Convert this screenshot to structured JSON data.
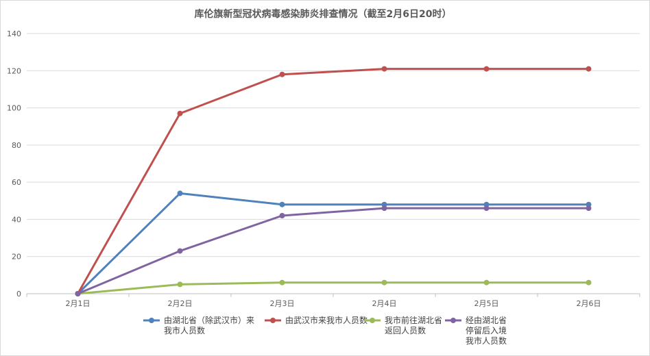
{
  "chart_data": {
    "type": "line",
    "title": "库伦旗新型冠状病毒感染肺炎排查情况（截至2月6日20时）",
    "xlabel": "",
    "ylabel": "",
    "categories": [
      "2月1日",
      "2月2日",
      "2月3日",
      "2月4日",
      "2月5日",
      "2月6日"
    ],
    "ylim": [
      0,
      140
    ],
    "yticks": [
      0,
      20,
      40,
      60,
      80,
      100,
      120,
      140
    ],
    "grid": true,
    "legend_position": "bottom",
    "series": [
      {
        "name": [
          "由湖北省（除武汉市）来",
          "我市人员数"
        ],
        "color": "#4f81bd",
        "values": [
          0,
          54,
          48,
          48,
          48,
          48
        ]
      },
      {
        "name": [
          "由武汉市来我市人员数"
        ],
        "color": "#c0504d",
        "values": [
          0,
          97,
          118,
          121,
          121,
          121
        ]
      },
      {
        "name": [
          "我市前往湖北省",
          "返回人员数"
        ],
        "color": "#9bbb59",
        "values": [
          0,
          5,
          6,
          6,
          6,
          6
        ]
      },
      {
        "name": [
          "经由湖北省",
          "停留后入境",
          "我市人员数"
        ],
        "color": "#8064a2",
        "values": [
          0,
          23,
          42,
          46,
          46,
          46
        ]
      }
    ]
  }
}
